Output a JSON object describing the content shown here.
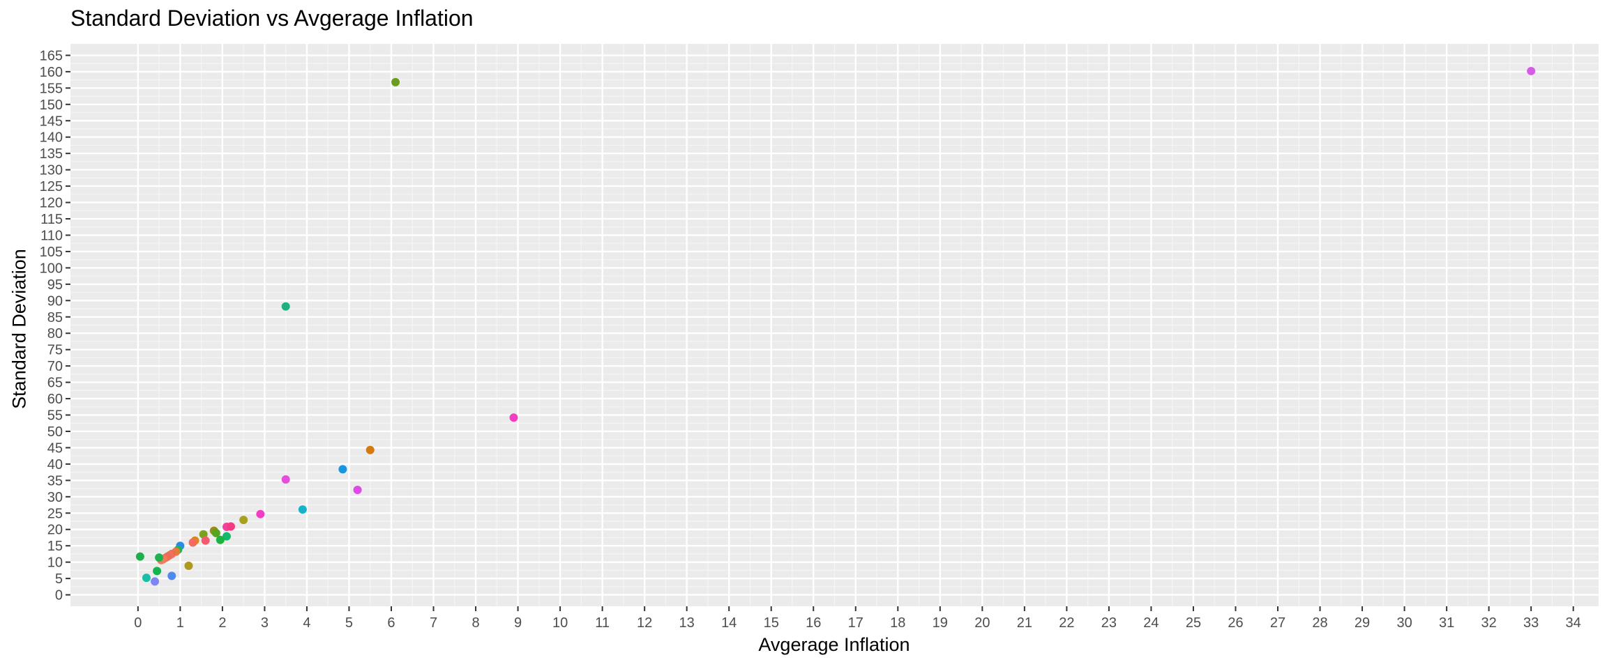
{
  "chart_data": {
    "type": "scatter",
    "title": "Standard Deviation vs Avgerage Inflation",
    "xlabel": "Avgerage Inflation",
    "ylabel": "Standard Deviation",
    "xlim": [
      -1.6,
      34.6
    ],
    "ylim": [
      -3.5,
      168.5
    ],
    "x_ticks": [
      0,
      1,
      2,
      3,
      4,
      5,
      6,
      7,
      8,
      9,
      10,
      11,
      12,
      13,
      14,
      15,
      16,
      17,
      18,
      19,
      20,
      21,
      22,
      23,
      24,
      25,
      26,
      27,
      28,
      29,
      30,
      31,
      32,
      33,
      34
    ],
    "y_ticks": [
      0,
      5,
      10,
      15,
      20,
      25,
      30,
      35,
      40,
      45,
      50,
      55,
      60,
      65,
      70,
      75,
      80,
      85,
      90,
      95,
      100,
      105,
      110,
      115,
      120,
      125,
      130,
      135,
      140,
      145,
      150,
      155,
      160,
      165
    ],
    "grid": true,
    "legend": "none",
    "points": [
      {
        "x": 33.0,
        "y": 160.2,
        "color": "#D65CE8"
      },
      {
        "x": 6.1,
        "y": 156.8,
        "color": "#6A9E1F"
      },
      {
        "x": 3.5,
        "y": 88.2,
        "color": "#1FB07E"
      },
      {
        "x": 8.9,
        "y": 54.2,
        "color": "#F23FBF"
      },
      {
        "x": 5.5,
        "y": 44.3,
        "color": "#D47A0F"
      },
      {
        "x": 4.85,
        "y": 38.4,
        "color": "#1A96E0"
      },
      {
        "x": 3.5,
        "y": 35.3,
        "color": "#E44FD9"
      },
      {
        "x": 5.2,
        "y": 32.1,
        "color": "#E049E6"
      },
      {
        "x": 3.9,
        "y": 26.1,
        "color": "#14B4C8"
      },
      {
        "x": 2.9,
        "y": 24.7,
        "color": "#F03DC4"
      },
      {
        "x": 2.5,
        "y": 22.9,
        "color": "#A7A11E"
      },
      {
        "x": 2.1,
        "y": 20.8,
        "color": "#F2409F"
      },
      {
        "x": 2.2,
        "y": 20.9,
        "color": "#F43A83"
      },
      {
        "x": 1.8,
        "y": 19.6,
        "color": "#9C8B1B"
      },
      {
        "x": 1.85,
        "y": 18.9,
        "color": "#55A51E"
      },
      {
        "x": 1.55,
        "y": 18.5,
        "color": "#7CA01F"
      },
      {
        "x": 2.1,
        "y": 17.9,
        "color": "#16B86A"
      },
      {
        "x": 1.95,
        "y": 16.8,
        "color": "#1AB441"
      },
      {
        "x": 1.6,
        "y": 16.6,
        "color": "#F25C6E"
      },
      {
        "x": 1.35,
        "y": 16.6,
        "color": "#D78A1A"
      },
      {
        "x": 1.3,
        "y": 16.0,
        "color": "#F26B5E"
      },
      {
        "x": 1.0,
        "y": 15.0,
        "color": "#2A8AE8"
      },
      {
        "x": 0.95,
        "y": 13.8,
        "color": "#1FB35C"
      },
      {
        "x": 0.9,
        "y": 13.2,
        "color": "#E57A3A"
      },
      {
        "x": 0.8,
        "y": 12.5,
        "color": "#EE6A5A"
      },
      {
        "x": 0.75,
        "y": 12.1,
        "color": "#F0725A"
      },
      {
        "x": 0.7,
        "y": 11.7,
        "color": "#E96F57"
      },
      {
        "x": 0.65,
        "y": 11.3,
        "color": "#F36A55"
      },
      {
        "x": 0.6,
        "y": 10.9,
        "color": "#F5785A"
      },
      {
        "x": 0.55,
        "y": 10.6,
        "color": "#E7845E"
      },
      {
        "x": 0.5,
        "y": 11.4,
        "color": "#21B24E"
      },
      {
        "x": 0.05,
        "y": 11.7,
        "color": "#1BB04A"
      },
      {
        "x": 1.2,
        "y": 8.9,
        "color": "#B0971D"
      },
      {
        "x": 0.45,
        "y": 7.3,
        "color": "#15B24F"
      },
      {
        "x": 0.2,
        "y": 5.2,
        "color": "#17BFA9"
      },
      {
        "x": 0.8,
        "y": 5.8,
        "color": "#4F8AF2"
      },
      {
        "x": 0.4,
        "y": 4.1,
        "color": "#7E86F4"
      }
    ]
  }
}
